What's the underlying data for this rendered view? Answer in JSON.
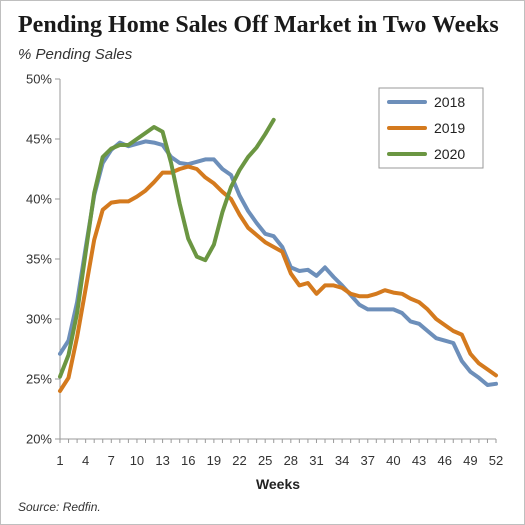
{
  "header": {
    "title": "Pending Home Sales Off Market in Two Weeks",
    "subtitle": "% Pending Sales"
  },
  "footer": {
    "source": "Source: Redfin."
  },
  "chart_data": {
    "type": "line",
    "title": "Pending Home Sales Off Market in Two Weeks",
    "subtitle": "% Pending Sales",
    "xlabel": "Weeks",
    "ylabel": "",
    "xlim": [
      1,
      52
    ],
    "ylim": [
      20,
      50
    ],
    "x_ticks": [
      1,
      4,
      7,
      10,
      13,
      16,
      19,
      22,
      25,
      28,
      31,
      34,
      37,
      40,
      43,
      46,
      49,
      52
    ],
    "y_ticks": [
      20,
      25,
      30,
      35,
      40,
      45,
      50
    ],
    "y_tick_labels": [
      "20%",
      "25%",
      "30%",
      "35%",
      "40%",
      "45%",
      "50%"
    ],
    "grid": false,
    "legend_position": "top-right",
    "series": [
      {
        "name": "2018",
        "color": "#6d8fba",
        "x": [
          1,
          2,
          3,
          4,
          5,
          6,
          7,
          8,
          9,
          10,
          11,
          12,
          13,
          14,
          15,
          16,
          17,
          18,
          19,
          20,
          21,
          22,
          23,
          24,
          25,
          26,
          27,
          28,
          29,
          30,
          31,
          32,
          33,
          34,
          35,
          36,
          37,
          38,
          39,
          40,
          41,
          42,
          43,
          44,
          45,
          46,
          47,
          48,
          49,
          50,
          51,
          52
        ],
        "values": [
          27.1,
          28.2,
          31.4,
          35.9,
          40.3,
          43.0,
          44.1,
          44.7,
          44.4,
          44.6,
          44.8,
          44.7,
          44.5,
          43.5,
          43.0,
          42.9,
          43.1,
          43.3,
          43.3,
          42.5,
          42.0,
          40.3,
          39.0,
          38.0,
          37.1,
          36.9,
          36.0,
          34.3,
          34.0,
          34.1,
          33.6,
          34.3,
          33.5,
          32.8,
          32.0,
          31.2,
          30.8,
          30.8,
          30.8,
          30.8,
          30.5,
          29.8,
          29.6,
          29.0,
          28.4,
          28.2,
          28.0,
          26.5,
          25.6,
          25.1,
          24.5,
          24.6
        ]
      },
      {
        "name": "2019",
        "color": "#d47a1e",
        "x": [
          1,
          2,
          3,
          4,
          5,
          6,
          7,
          8,
          9,
          10,
          11,
          12,
          13,
          14,
          15,
          16,
          17,
          18,
          19,
          20,
          21,
          22,
          23,
          24,
          25,
          26,
          27,
          28,
          29,
          30,
          31,
          32,
          33,
          34,
          35,
          36,
          37,
          38,
          39,
          40,
          41,
          42,
          43,
          44,
          45,
          46,
          47,
          48,
          49,
          50,
          51,
          52
        ],
        "values": [
          24.0,
          25.1,
          28.5,
          32.5,
          36.6,
          39.1,
          39.7,
          39.8,
          39.8,
          40.2,
          40.7,
          41.4,
          42.2,
          42.2,
          42.5,
          42.7,
          42.5,
          41.8,
          41.3,
          40.6,
          40.0,
          38.7,
          37.6,
          37.0,
          36.4,
          36.0,
          35.6,
          33.8,
          32.8,
          33.0,
          32.1,
          32.8,
          32.8,
          32.6,
          32.1,
          31.9,
          31.9,
          32.1,
          32.4,
          32.2,
          32.1,
          31.7,
          31.4,
          30.8,
          30.0,
          29.5,
          29.0,
          28.7,
          27.1,
          26.3,
          25.8,
          25.3
        ]
      },
      {
        "name": "2020",
        "color": "#6b9642",
        "x": [
          1,
          2,
          3,
          4,
          5,
          6,
          7,
          8,
          9,
          10,
          11,
          12,
          13,
          14,
          15,
          16,
          17,
          18,
          19,
          20,
          21,
          22,
          23,
          24,
          25,
          26
        ],
        "values": [
          25.2,
          27.0,
          30.5,
          35.5,
          40.5,
          43.5,
          44.2,
          44.5,
          44.5,
          45.0,
          45.5,
          46.0,
          45.6,
          43.0,
          39.6,
          36.7,
          35.2,
          34.9,
          36.2,
          38.9,
          41.0,
          42.4,
          43.5,
          44.3,
          45.4,
          46.6
        ]
      }
    ]
  }
}
